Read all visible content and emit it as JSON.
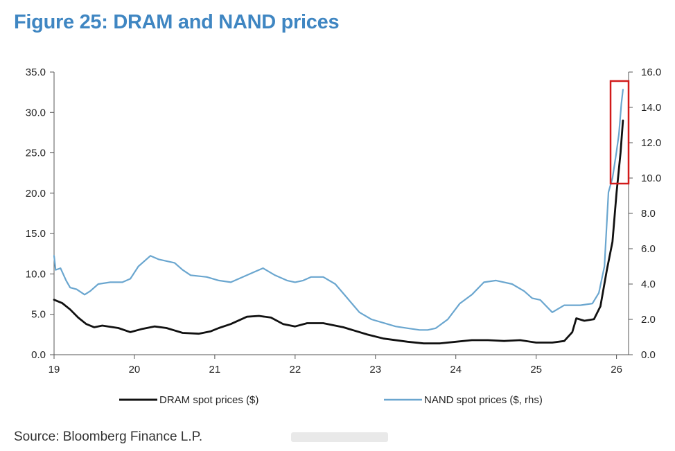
{
  "figure": {
    "title": "Figure 25: DRAM and NAND prices",
    "source": "Source: Bloomberg Finance L.P."
  },
  "colors": {
    "title": "#3f86c2",
    "dram": "#111111",
    "nand": "#6aa6cf",
    "highlight_box": "#d11a1a"
  },
  "chart_data": {
    "type": "line",
    "x_ticks": [
      "19",
      "20",
      "21",
      "22",
      "23",
      "24",
      "25",
      "26"
    ],
    "xlim": [
      19,
      26.15
    ],
    "y_left": {
      "lim": [
        0,
        35
      ],
      "ticks": [
        "0.0",
        "5.0",
        "10.0",
        "15.0",
        "20.0",
        "25.0",
        "30.0",
        "35.0"
      ]
    },
    "y_right": {
      "lim": [
        0,
        16
      ],
      "ticks": [
        "0.0",
        "2.0",
        "4.0",
        "6.0",
        "8.0",
        "10.0",
        "12.0",
        "14.0",
        "16.0"
      ]
    },
    "legend_position": "bottom",
    "annotation": "red box highlighting late 2025-2026 surge",
    "series": [
      {
        "name": "DRAM spot prices ($)",
        "axis": "left",
        "x": [
          19.0,
          19.1,
          19.2,
          19.3,
          19.4,
          19.5,
          19.6,
          19.8,
          19.95,
          20.1,
          20.25,
          20.4,
          20.6,
          20.8,
          20.95,
          21.05,
          21.2,
          21.4,
          21.55,
          21.7,
          21.85,
          22.0,
          22.15,
          22.35,
          22.6,
          22.9,
          23.1,
          23.4,
          23.6,
          23.8,
          24.0,
          24.2,
          24.4,
          24.6,
          24.8,
          25.0,
          25.2,
          25.35,
          25.45,
          25.5,
          25.6,
          25.72,
          25.8,
          25.88,
          25.95,
          26.0,
          26.05,
          26.08
        ],
        "values": [
          6.8,
          6.4,
          5.6,
          4.6,
          3.8,
          3.4,
          3.6,
          3.3,
          2.8,
          3.2,
          3.5,
          3.3,
          2.7,
          2.6,
          2.9,
          3.3,
          3.8,
          4.7,
          4.8,
          4.6,
          3.8,
          3.5,
          3.9,
          3.9,
          3.4,
          2.5,
          2.0,
          1.6,
          1.4,
          1.4,
          1.6,
          1.8,
          1.8,
          1.7,
          1.8,
          1.5,
          1.5,
          1.7,
          2.8,
          4.5,
          4.2,
          4.4,
          6.0,
          10.5,
          14.0,
          20.0,
          25.0,
          29.0
        ]
      },
      {
        "name": "NAND spot prices ($, rhs)",
        "axis": "right",
        "x": [
          19.0,
          19.02,
          19.08,
          19.15,
          19.2,
          19.28,
          19.38,
          19.45,
          19.55,
          19.7,
          19.85,
          19.95,
          20.05,
          20.2,
          20.3,
          20.5,
          20.6,
          20.7,
          20.9,
          21.05,
          21.2,
          21.35,
          21.5,
          21.6,
          21.75,
          21.9,
          22.0,
          22.1,
          22.2,
          22.35,
          22.5,
          22.65,
          22.8,
          22.95,
          23.1,
          23.25,
          23.4,
          23.55,
          23.65,
          23.75,
          23.9,
          24.05,
          24.2,
          24.35,
          24.5,
          24.7,
          24.85,
          24.95,
          25.05,
          25.2,
          25.35,
          25.55,
          25.7,
          25.78,
          25.85,
          25.9,
          25.95,
          26.0,
          26.03,
          26.06,
          26.08
        ],
        "values": [
          5.6,
          4.8,
          4.9,
          4.2,
          3.8,
          3.7,
          3.4,
          3.6,
          4.0,
          4.1,
          4.1,
          4.3,
          5.0,
          5.6,
          5.4,
          5.2,
          4.8,
          4.5,
          4.4,
          4.2,
          4.1,
          4.4,
          4.7,
          4.9,
          4.5,
          4.2,
          4.1,
          4.2,
          4.4,
          4.4,
          4.0,
          3.2,
          2.4,
          2.0,
          1.8,
          1.6,
          1.5,
          1.4,
          1.4,
          1.5,
          2.0,
          2.9,
          3.4,
          4.1,
          4.2,
          4.0,
          3.6,
          3.2,
          3.1,
          2.4,
          2.8,
          2.8,
          2.9,
          3.5,
          5.0,
          9.2,
          10.0,
          11.5,
          12.5,
          14.2,
          15.0
        ]
      }
    ]
  }
}
